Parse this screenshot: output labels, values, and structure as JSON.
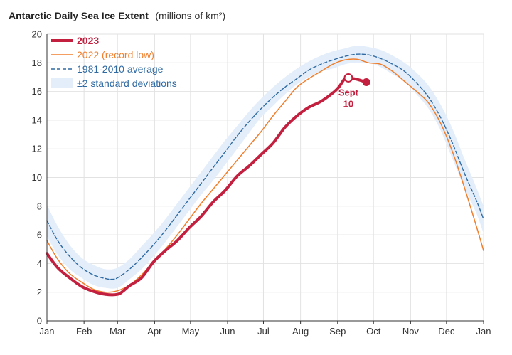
{
  "chart_data": {
    "type": "line",
    "title": "Antarctic Daily Sea Ice Extent",
    "title_units": "(millions of km²)",
    "ylim": [
      0,
      20
    ],
    "y_ticks": [
      0,
      2,
      4,
      6,
      8,
      10,
      12,
      14,
      16,
      18,
      20
    ],
    "xlim": [
      1,
      366
    ],
    "x_ticks": [
      {
        "label": "Jan",
        "day": 1
      },
      {
        "label": "Feb",
        "day": 32
      },
      {
        "label": "Mar",
        "day": 60
      },
      {
        "label": "Apr",
        "day": 91
      },
      {
        "label": "May",
        "day": 121
      },
      {
        "label": "Jun",
        "day": 152
      },
      {
        "label": "Jul",
        "day": 182
      },
      {
        "label": "Aug",
        "day": 213
      },
      {
        "label": "Sep",
        "day": 244
      },
      {
        "label": "Oct",
        "day": 274
      },
      {
        "label": "Nov",
        "day": 305
      },
      {
        "label": "Dec",
        "day": 335
      },
      {
        "label": "Jan",
        "day": 366
      }
    ],
    "grid": true,
    "legend_position": "top-left",
    "colors": {
      "y2023": "#c3203f",
      "y2022": "#f07f2d",
      "average": "#2f6aa3",
      "band": "#e3eefa",
      "grid": "#e2e2e2"
    },
    "legend": {
      "y2023": "2023",
      "y2022": "2022 (record low)",
      "average": "1981-2010 average",
      "band": "±2 standard deviations"
    },
    "series": [
      {
        "name": "2023",
        "x": [
          1,
          10,
          20,
          30,
          40,
          50,
          60,
          65,
          70,
          80,
          90,
          100,
          110,
          120,
          130,
          140,
          150,
          160,
          170,
          180,
          190,
          200,
          210,
          220,
          230,
          240,
          245,
          250,
          253,
          260,
          268
        ],
        "y": [
          4.7,
          3.7,
          3.0,
          2.4,
          2.05,
          1.85,
          1.85,
          2.1,
          2.45,
          3.0,
          4.1,
          4.9,
          5.6,
          6.5,
          7.3,
          8.3,
          9.1,
          10.1,
          10.8,
          11.6,
          12.4,
          13.5,
          14.3,
          14.9,
          15.3,
          15.9,
          16.3,
          16.9,
          16.95,
          16.85,
          16.65
        ]
      },
      {
        "name": "2022 (record low)",
        "x": [
          1,
          10,
          20,
          30,
          40,
          50,
          60,
          70,
          80,
          90,
          100,
          110,
          120,
          130,
          140,
          150,
          160,
          170,
          180,
          190,
          200,
          210,
          220,
          230,
          240,
          250,
          260,
          270,
          280,
          290,
          300,
          310,
          320,
          330,
          340,
          350,
          360,
          366
        ],
        "y": [
          5.6,
          4.3,
          3.3,
          2.7,
          2.2,
          2.0,
          2.1,
          2.5,
          3.2,
          4.1,
          5.0,
          6.0,
          7.1,
          8.2,
          9.2,
          10.2,
          11.2,
          12.2,
          13.2,
          14.3,
          15.3,
          16.3,
          16.9,
          17.4,
          17.9,
          18.2,
          18.25,
          18.0,
          17.9,
          17.4,
          16.7,
          16.0,
          15.2,
          13.8,
          11.8,
          9.3,
          6.6,
          4.9
        ]
      },
      {
        "name": "1981-2010 average",
        "x": [
          1,
          10,
          20,
          30,
          40,
          50,
          55,
          60,
          70,
          80,
          90,
          100,
          110,
          120,
          130,
          140,
          150,
          160,
          170,
          180,
          190,
          200,
          210,
          220,
          230,
          240,
          250,
          260,
          270,
          280,
          290,
          300,
          310,
          320,
          330,
          340,
          350,
          360,
          366
        ],
        "y": [
          7.0,
          5.6,
          4.5,
          3.7,
          3.2,
          2.95,
          2.9,
          3.0,
          3.6,
          4.4,
          5.3,
          6.3,
          7.4,
          8.5,
          9.6,
          10.7,
          11.8,
          12.9,
          13.9,
          14.8,
          15.6,
          16.3,
          16.9,
          17.5,
          17.9,
          18.2,
          18.45,
          18.6,
          18.55,
          18.3,
          17.9,
          17.4,
          16.6,
          15.6,
          14.2,
          12.4,
          10.3,
          8.4,
          7.1
        ]
      }
    ],
    "band": {
      "name": "±2 standard deviations",
      "x": [
        1,
        10,
        20,
        30,
        40,
        50,
        60,
        70,
        80,
        90,
        100,
        110,
        120,
        130,
        140,
        150,
        160,
        170,
        180,
        190,
        200,
        210,
        220,
        230,
        240,
        250,
        260,
        270,
        280,
        290,
        300,
        310,
        320,
        330,
        340,
        350,
        360,
        366
      ],
      "upper": [
        8.1,
        6.6,
        5.3,
        4.4,
        3.9,
        3.6,
        3.7,
        4.3,
        5.2,
        6.1,
        7.1,
        8.2,
        9.3,
        10.4,
        11.5,
        12.6,
        13.6,
        14.6,
        15.5,
        16.3,
        17.0,
        17.6,
        18.1,
        18.5,
        18.8,
        19.0,
        19.2,
        19.1,
        18.9,
        18.5,
        18.0,
        17.3,
        16.4,
        15.1,
        13.4,
        11.3,
        9.3,
        8.0
      ],
      "lower": [
        5.9,
        4.6,
        3.6,
        3.0,
        2.5,
        2.3,
        2.3,
        2.9,
        3.6,
        4.5,
        5.5,
        6.6,
        7.7,
        8.8,
        9.8,
        10.9,
        12.0,
        13.1,
        14.2,
        15.0,
        15.8,
        16.5,
        17.0,
        17.4,
        17.6,
        17.9,
        18.0,
        18.0,
        17.7,
        17.2,
        16.7,
        15.8,
        14.8,
        13.3,
        11.3,
        9.3,
        7.5,
        6.1
      ]
    },
    "annotation": {
      "label_line1": "Sept",
      "label_line2": "10",
      "day": 253,
      "value": 16.95
    },
    "end_marker": {
      "day": 268,
      "value": 16.65
    }
  }
}
